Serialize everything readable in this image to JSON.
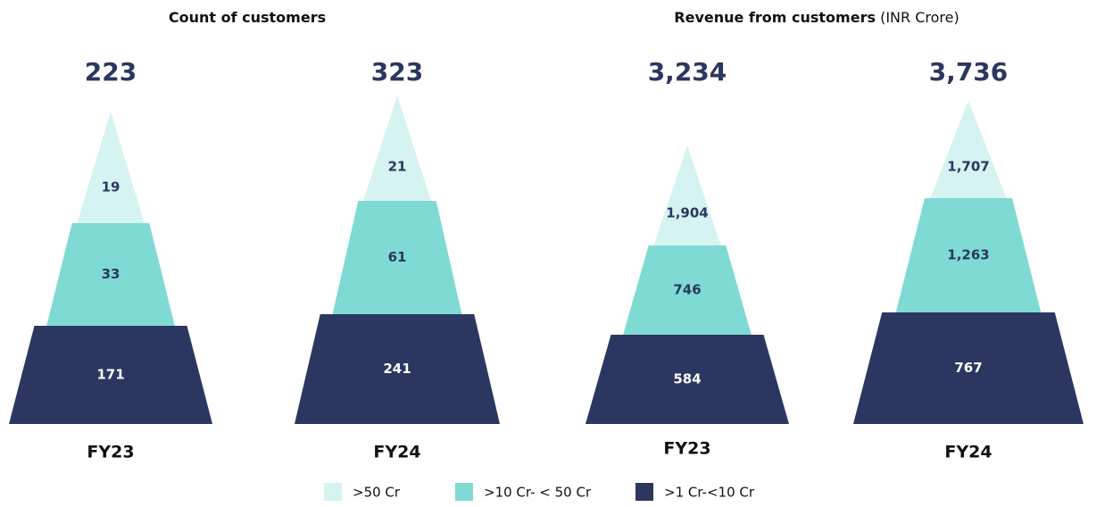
{
  "chart_data": [
    {
      "type": "pyramid",
      "title": "Count of customers",
      "categories": [
        "FY23",
        "FY24"
      ],
      "totals": [
        223,
        323
      ],
      "series": [
        {
          "name": ">50 Cr",
          "color": "#d5f3f0",
          "values": [
            19,
            21
          ]
        },
        {
          "name": ">10 Cr- < 50 Cr",
          "color": "#7fdad3",
          "values": [
            33,
            61
          ]
        },
        {
          "name": ">1 Cr-<10 Cr",
          "color": "#2b3760",
          "values": [
            171,
            241
          ]
        }
      ]
    },
    {
      "type": "pyramid",
      "title": "Revenue from customers",
      "unit": "(INR Crore)",
      "categories": [
        "FY23",
        "FY24"
      ],
      "totals": [
        3234,
        3736
      ],
      "total_labels": [
        "3,234",
        "3,736"
      ],
      "series": [
        {
          "name": ">50 Cr",
          "color": "#d5f3f0",
          "values": [
            1904,
            1707
          ],
          "value_labels": [
            "1,904",
            "1,707"
          ]
        },
        {
          "name": ">10 Cr- < 50 Cr",
          "color": "#7fdad3",
          "values": [
            746,
            1263
          ],
          "value_labels": [
            "746",
            "1,263"
          ]
        },
        {
          "name": ">1 Cr-<10 Cr",
          "color": "#2b3760",
          "values": [
            584,
            767
          ]
        }
      ]
    }
  ]
}
